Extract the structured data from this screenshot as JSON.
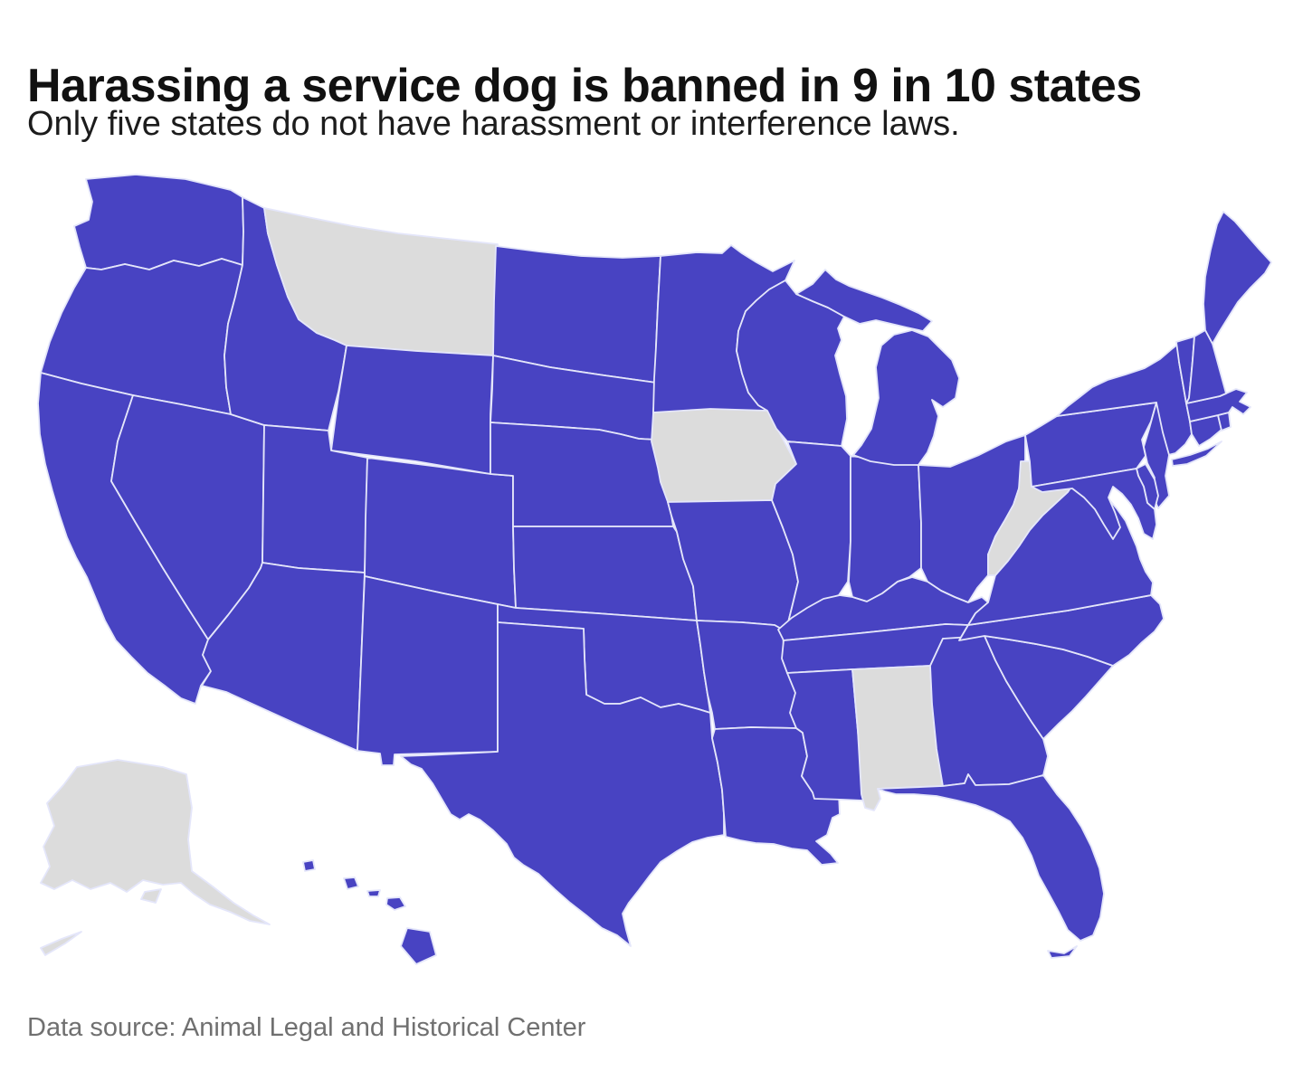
{
  "header": {
    "title": "Harassing a service dog is banned in 9 in 10 states",
    "subtitle": "Only five states do not have harassment or interference laws."
  },
  "footer": {
    "source": "Data source: Animal Legal and Historical Center"
  },
  "colors": {
    "has_law": "#4843c2",
    "no_law": "#dcdcdc",
    "border": "#e4e6fa",
    "background": "#ffffff"
  },
  "chart_data": {
    "type": "choropleth",
    "region": "United States",
    "title": "Harassing a service dog is banned in 9 in 10 states",
    "metric": "State has a service-dog harassment or interference law",
    "states_without_laws": [
      "Alabama",
      "Alaska",
      "Iowa",
      "Montana",
      "West Virginia"
    ],
    "states": [
      {
        "code": "AL",
        "name": "Alabama",
        "has_law": false
      },
      {
        "code": "AK",
        "name": "Alaska",
        "has_law": false
      },
      {
        "code": "AZ",
        "name": "Arizona",
        "has_law": true
      },
      {
        "code": "AR",
        "name": "Arkansas",
        "has_law": true
      },
      {
        "code": "CA",
        "name": "California",
        "has_law": true
      },
      {
        "code": "CO",
        "name": "Colorado",
        "has_law": true
      },
      {
        "code": "CT",
        "name": "Connecticut",
        "has_law": true
      },
      {
        "code": "DE",
        "name": "Delaware",
        "has_law": true
      },
      {
        "code": "FL",
        "name": "Florida",
        "has_law": true
      },
      {
        "code": "GA",
        "name": "Georgia",
        "has_law": true
      },
      {
        "code": "HI",
        "name": "Hawaii",
        "has_law": true
      },
      {
        "code": "ID",
        "name": "Idaho",
        "has_law": true
      },
      {
        "code": "IL",
        "name": "Illinois",
        "has_law": true
      },
      {
        "code": "IN",
        "name": "Indiana",
        "has_law": true
      },
      {
        "code": "IA",
        "name": "Iowa",
        "has_law": false
      },
      {
        "code": "KS",
        "name": "Kansas",
        "has_law": true
      },
      {
        "code": "KY",
        "name": "Kentucky",
        "has_law": true
      },
      {
        "code": "LA",
        "name": "Louisiana",
        "has_law": true
      },
      {
        "code": "ME",
        "name": "Maine",
        "has_law": true
      },
      {
        "code": "MD",
        "name": "Maryland",
        "has_law": true
      },
      {
        "code": "MA",
        "name": "Massachusetts",
        "has_law": true
      },
      {
        "code": "MI",
        "name": "Michigan",
        "has_law": true
      },
      {
        "code": "MN",
        "name": "Minnesota",
        "has_law": true
      },
      {
        "code": "MS",
        "name": "Mississippi",
        "has_law": true
      },
      {
        "code": "MO",
        "name": "Missouri",
        "has_law": true
      },
      {
        "code": "MT",
        "name": "Montana",
        "has_law": false
      },
      {
        "code": "NE",
        "name": "Nebraska",
        "has_law": true
      },
      {
        "code": "NV",
        "name": "Nevada",
        "has_law": true
      },
      {
        "code": "NH",
        "name": "New Hampshire",
        "has_law": true
      },
      {
        "code": "NJ",
        "name": "New Jersey",
        "has_law": true
      },
      {
        "code": "NM",
        "name": "New Mexico",
        "has_law": true
      },
      {
        "code": "NY",
        "name": "New York",
        "has_law": true
      },
      {
        "code": "NC",
        "name": "North Carolina",
        "has_law": true
      },
      {
        "code": "ND",
        "name": "North Dakota",
        "has_law": true
      },
      {
        "code": "OH",
        "name": "Ohio",
        "has_law": true
      },
      {
        "code": "OK",
        "name": "Oklahoma",
        "has_law": true
      },
      {
        "code": "OR",
        "name": "Oregon",
        "has_law": true
      },
      {
        "code": "PA",
        "name": "Pennsylvania",
        "has_law": true
      },
      {
        "code": "RI",
        "name": "Rhode Island",
        "has_law": true
      },
      {
        "code": "SC",
        "name": "South Carolina",
        "has_law": true
      },
      {
        "code": "SD",
        "name": "South Dakota",
        "has_law": true
      },
      {
        "code": "TN",
        "name": "Tennessee",
        "has_law": true
      },
      {
        "code": "TX",
        "name": "Texas",
        "has_law": true
      },
      {
        "code": "UT",
        "name": "Utah",
        "has_law": true
      },
      {
        "code": "VT",
        "name": "Vermont",
        "has_law": true
      },
      {
        "code": "VA",
        "name": "Virginia",
        "has_law": true
      },
      {
        "code": "WA",
        "name": "Washington",
        "has_law": true
      },
      {
        "code": "WV",
        "name": "West Virginia",
        "has_law": false
      },
      {
        "code": "WI",
        "name": "Wisconsin",
        "has_law": true
      },
      {
        "code": "WY",
        "name": "Wyoming",
        "has_law": true
      }
    ]
  }
}
